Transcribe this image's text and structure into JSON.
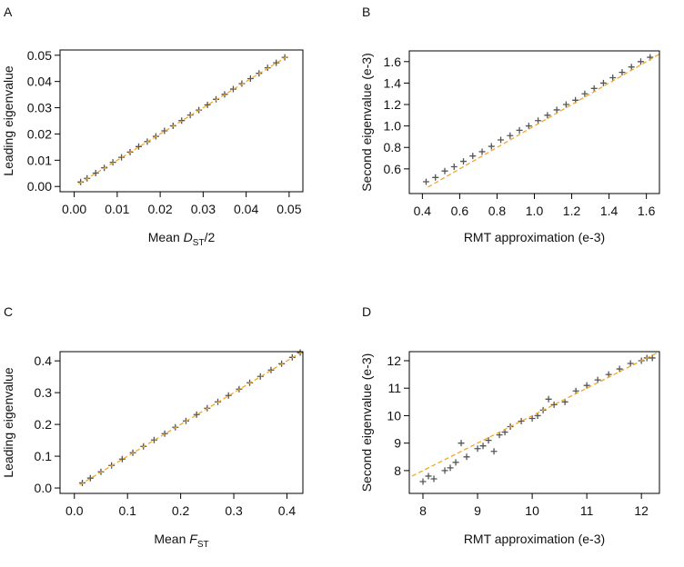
{
  "chart_data": [
    {
      "type": "scatter",
      "label": "A",
      "xlabel": [
        {
          "text": "Mean "
        },
        {
          "text": "D",
          "italic": true
        },
        {
          "text": "ST",
          "subscript": true
        },
        {
          "text": "/2"
        }
      ],
      "ylabel": [
        {
          "text": "Leading eigenvalue"
        }
      ],
      "xlim": [
        -0.0033,
        0.0532
      ],
      "ylim": [
        -0.002,
        0.052
      ],
      "xticks": [
        {
          "value": 0,
          "label": "0.00"
        },
        0.01,
        0.02,
        0.03,
        0.04,
        0.05
      ],
      "yticks": [
        {
          "value": 0,
          "label": "0.00"
        },
        0.01,
        0.02,
        0.03,
        0.04,
        0.05
      ],
      "series": [
        {
          "marker": "+",
          "color": "#555555",
          "x": [
            0.0015,
            0.003,
            0.005,
            0.007,
            0.009,
            0.011,
            0.013,
            0.015,
            0.017,
            0.019,
            0.021,
            0.023,
            0.025,
            0.027,
            0.029,
            0.031,
            0.033,
            0.035,
            0.037,
            0.039,
            0.041,
            0.043,
            0.045,
            0.047,
            0.049
          ],
          "values": [
            0.0017,
            0.0031,
            0.0051,
            0.0071,
            0.0092,
            0.0111,
            0.0131,
            0.0152,
            0.0171,
            0.0191,
            0.0212,
            0.0231,
            0.0251,
            0.0272,
            0.0291,
            0.0311,
            0.0332,
            0.0351,
            0.0371,
            0.0392,
            0.0411,
            0.0431,
            0.0452,
            0.0471,
            0.0492
          ]
        },
        {
          "marker": "dashed-line",
          "color": "#f5a623",
          "x": [
            0.001,
            0.05
          ],
          "values": [
            0.001,
            0.05
          ]
        }
      ]
    },
    {
      "type": "scatter",
      "label": "B",
      "xlabel": [
        {
          "text": "RMT approximation (e-3)"
        }
      ],
      "ylabel": [
        {
          "text": "Second eigenvalue (e-3)"
        }
      ],
      "xlim": [
        0.33,
        1.67
      ],
      "ylim": [
        0.37,
        1.7
      ],
      "xticks": [
        0.4,
        0.6,
        0.8,
        {
          "value": 1,
          "label": "1.0"
        },
        1.2,
        1.4,
        1.6
      ],
      "yticks": [
        0.6,
        0.8,
        {
          "value": 1,
          "label": "1.0"
        },
        1.2,
        1.4,
        1.6
      ],
      "series": [
        {
          "marker": "+",
          "color": "#555555",
          "x": [
            0.42,
            0.47,
            0.52,
            0.57,
            0.62,
            0.67,
            0.72,
            0.77,
            0.82,
            0.87,
            0.92,
            0.97,
            1.02,
            1.07,
            1.12,
            1.17,
            1.22,
            1.27,
            1.32,
            1.37,
            1.42,
            1.47,
            1.52,
            1.57,
            1.62
          ],
          "values": [
            0.48,
            0.52,
            0.58,
            0.62,
            0.67,
            0.72,
            0.76,
            0.81,
            0.87,
            0.91,
            0.96,
            1.0,
            1.05,
            1.1,
            1.15,
            1.2,
            1.24,
            1.3,
            1.35,
            1.4,
            1.45,
            1.5,
            1.55,
            1.6,
            1.64
          ]
        },
        {
          "marker": "dashed-line",
          "color": "#f5a623",
          "x": [
            0.43,
            1.67
          ],
          "values": [
            0.43,
            1.67
          ]
        }
      ]
    },
    {
      "type": "scatter",
      "label": "C",
      "xlabel": [
        {
          "text": "Mean "
        },
        {
          "text": "F",
          "italic": true
        },
        {
          "text": "ST",
          "subscript": true
        }
      ],
      "ylabel": [
        {
          "text": "Leading eigenvalue"
        }
      ],
      "xlim": [
        -0.027,
        0.43
      ],
      "ylim": [
        -0.017,
        0.429
      ],
      "xticks": [
        {
          "value": 0,
          "label": "0.0"
        },
        0.1,
        0.2,
        0.3,
        0.4
      ],
      "yticks": [
        {
          "value": 0,
          "label": "0.0"
        },
        0.1,
        0.2,
        0.3,
        0.4
      ],
      "series": [
        {
          "marker": "+",
          "color": "#555555",
          "x": [
            0.015,
            0.03,
            0.05,
            0.07,
            0.09,
            0.11,
            0.13,
            0.15,
            0.17,
            0.19,
            0.21,
            0.23,
            0.25,
            0.27,
            0.29,
            0.31,
            0.33,
            0.35,
            0.37,
            0.39,
            0.41,
            0.425
          ],
          "values": [
            0.016,
            0.031,
            0.051,
            0.071,
            0.091,
            0.111,
            0.131,
            0.151,
            0.171,
            0.191,
            0.211,
            0.231,
            0.251,
            0.271,
            0.291,
            0.311,
            0.331,
            0.351,
            0.371,
            0.391,
            0.411,
            0.426
          ]
        },
        {
          "marker": "dashed-line",
          "color": "#f5a623",
          "x": [
            0.01,
            0.43
          ],
          "values": [
            0.01,
            0.43
          ]
        }
      ]
    },
    {
      "type": "scatter",
      "label": "D",
      "xlabel": [
        {
          "text": "RMT approximation (e-3)"
        }
      ],
      "ylabel": [
        {
          "text": "Second eigenvalue (e-3)"
        }
      ],
      "xlim": [
        7.75,
        12.33
      ],
      "ylim": [
        7.17,
        12.33
      ],
      "xticks": [
        8,
        9,
        10,
        11,
        12
      ],
      "yticks": [
        8,
        9,
        10,
        11,
        12
      ],
      "series": [
        {
          "marker": "+",
          "color": "#555555",
          "x": [
            8.0,
            8.1,
            8.2,
            8.4,
            8.5,
            8.6,
            8.7,
            8.8,
            9.0,
            9.1,
            9.2,
            9.3,
            9.4,
            9.5,
            9.6,
            9.8,
            10.0,
            10.1,
            10.2,
            10.3,
            10.4,
            10.6,
            10.8,
            11.0,
            11.2,
            11.4,
            11.6,
            11.8,
            12.0,
            12.1,
            12.2
          ],
          "values": [
            7.6,
            7.8,
            7.7,
            8.0,
            8.1,
            8.3,
            9.0,
            8.5,
            8.8,
            8.9,
            9.1,
            8.7,
            9.3,
            9.4,
            9.6,
            9.8,
            9.9,
            10.0,
            10.2,
            10.6,
            10.4,
            10.5,
            10.9,
            11.1,
            11.3,
            11.5,
            11.7,
            11.9,
            12.0,
            12.1,
            12.1
          ]
        },
        {
          "marker": "dashed-line",
          "color": "#f5a623",
          "x": [
            7.8,
            12.3
          ],
          "values": [
            7.8,
            12.3
          ]
        }
      ]
    }
  ]
}
